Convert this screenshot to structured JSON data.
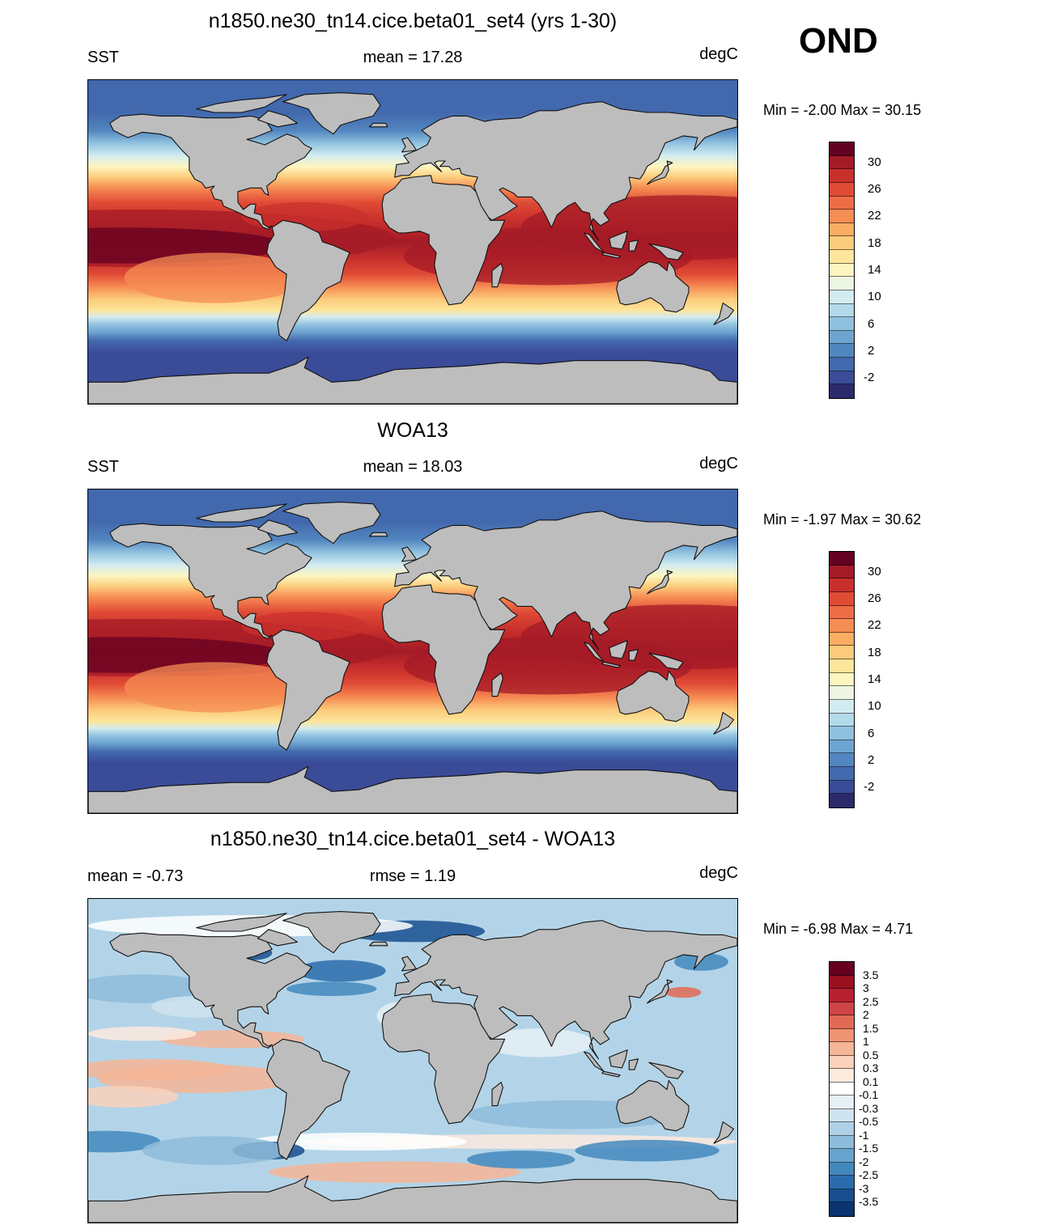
{
  "season": "OND",
  "chart_data": [
    {
      "type": "heatmap",
      "title": "n1850.ne30_tn14.cice.beta01_set4 (yrs 1-30)",
      "left_label": "SST",
      "center_label": "mean =  17.28",
      "units": "degC",
      "minmax": "Min =  -2.00 Max =  30.15",
      "field": "model SST",
      "colorbar_ticks": [
        "30",
        "26",
        "22",
        "18",
        "14",
        "10",
        "6",
        "2",
        "-2"
      ],
      "colors": [
        "#640021",
        "#a41b27",
        "#c9302c",
        "#e04b36",
        "#ee6d44",
        "#f68d54",
        "#fbad63",
        "#fccc7c",
        "#fde59b",
        "#fef6c1",
        "#edf6e3",
        "#d2ebf1",
        "#b3daea",
        "#8fc1df",
        "#6ea5d0",
        "#5286c0",
        "#4268ad",
        "#3a4b98",
        "#2c2a6a"
      ]
    },
    {
      "type": "heatmap",
      "title": "WOA13",
      "left_label": "SST",
      "center_label": "mean =  18.03",
      "units": "degC",
      "minmax": "Min =  -1.97 Max =  30.62",
      "field": "observed SST",
      "colorbar_ticks": [
        "30",
        "26",
        "22",
        "18",
        "14",
        "10",
        "6",
        "2",
        "-2"
      ],
      "colors": [
        "#640021",
        "#a41b27",
        "#c9302c",
        "#e04b36",
        "#ee6d44",
        "#f68d54",
        "#fbad63",
        "#fccc7c",
        "#fde59b",
        "#fef6c1",
        "#edf6e3",
        "#d2ebf1",
        "#b3daea",
        "#8fc1df",
        "#6ea5d0",
        "#5286c0",
        "#4268ad",
        "#3a4b98",
        "#2c2a6a"
      ]
    },
    {
      "type": "heatmap",
      "title": "n1850.ne30_tn14.cice.beta01_set4 - WOA13",
      "left_label": "mean =  -0.73",
      "center_label": "rmse =   1.19",
      "units": "degC",
      "minmax": "Min =  -6.98 Max =   4.71",
      "field": "SST difference",
      "colorbar_ticks": [
        "3.5",
        "3",
        "2.5",
        "2",
        "1.5",
        "1",
        "0.5",
        "0.3",
        "0.1",
        "-0.1",
        "-0.3",
        "-0.5",
        "-1",
        "-1.5",
        "-2",
        "-2.5",
        "-3",
        "-3.5"
      ],
      "colors": [
        "#67001f",
        "#99101f",
        "#b92132",
        "#cf4446",
        "#e06a55",
        "#ef9372",
        "#f6b596",
        "#fad1bb",
        "#fde9de",
        "#ffffff",
        "#e6f0f6",
        "#cfe3ef",
        "#afd0e5",
        "#8ebcdb",
        "#66a3cd",
        "#4388bd",
        "#2a6cab",
        "#184f91",
        "#0b3470"
      ]
    }
  ]
}
